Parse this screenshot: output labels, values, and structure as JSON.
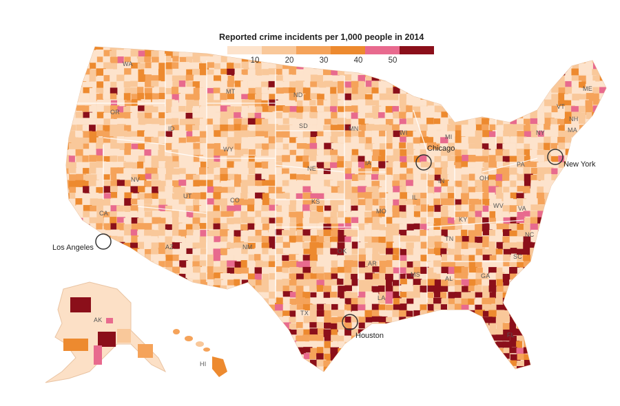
{
  "legend": {
    "title": "Reported crime incidents per 1,000 people in 2014",
    "ticks": [
      "10",
      "20",
      "30",
      "40",
      "50"
    ],
    "colors": [
      "#fde3cc",
      "#f9c89a",
      "#f5a35a",
      "#ed8a2f",
      "#e86a8e",
      "#8b0f1a"
    ]
  },
  "states": {
    "WA": "WA",
    "OR": "OR",
    "ID": "ID",
    "MT": "MT",
    "ND": "ND",
    "SD": "SD",
    "MN": "MN",
    "WY": "WY",
    "NV": "NV",
    "UT": "UT",
    "CO": "CO",
    "NE": "NE",
    "KS": "KS",
    "IA": "IA",
    "CA": "CA",
    "AZ": "AZ",
    "NM": "NM",
    "OK": "OK",
    "TX": "TX",
    "MO": "MO",
    "AR": "AR",
    "LA": "LA",
    "MS": "MS",
    "TN": "TN",
    "AL": "AL",
    "GA": "GA",
    "FL": "FL",
    "SC": "SC",
    "NC": "NC",
    "KY": "KY",
    "IL": "IL",
    "IN": "IN",
    "OH": "OH",
    "WV": "WV",
    "VA": "VA",
    "PA": "PA",
    "NY": "NY",
    "MI": "MI",
    "WI": "WI",
    "VT": "VT",
    "NH": "NH",
    "MA": "MA",
    "ME": "ME",
    "AK": "AK",
    "HI": "HI"
  },
  "cities": {
    "chicago": "Chicago",
    "new_york": "New York",
    "los_angeles": "Los Angeles",
    "houston": "Houston"
  }
}
